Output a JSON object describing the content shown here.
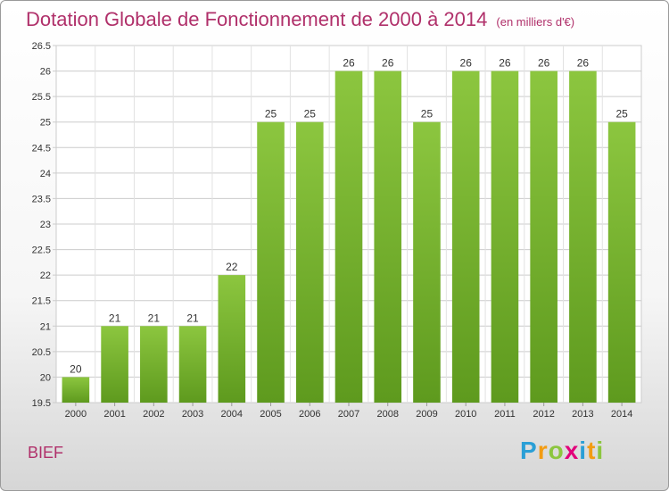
{
  "header": {
    "title": "Dotation Globale de Fonctionnement de 2000 à 2014",
    "subtitle": "(en milliers d'€)"
  },
  "commune": "BIEF",
  "logo": {
    "text": "Proxiti",
    "letters": [
      {
        "ch": "P",
        "color": "#2a9fd6"
      },
      {
        "ch": "r",
        "color": "#f39c12"
      },
      {
        "ch": "o",
        "color": "#8cc63f"
      },
      {
        "ch": "x",
        "color": "#e2007a"
      },
      {
        "ch": "i",
        "color": "#2a9fd6"
      },
      {
        "ch": "t",
        "color": "#f39c12"
      },
      {
        "ch": "i",
        "color": "#8cc63f"
      }
    ]
  },
  "chart_data": {
    "type": "bar",
    "categories": [
      "2000",
      "2001",
      "2002",
      "2003",
      "2004",
      "2005",
      "2006",
      "2007",
      "2008",
      "2009",
      "2010",
      "2011",
      "2012",
      "2013",
      "2014"
    ],
    "values": [
      20,
      21,
      21,
      21,
      22,
      25,
      25,
      26,
      26,
      25,
      26,
      26,
      26,
      26,
      25
    ],
    "value_labels": [
      "20",
      "21",
      "21",
      "21",
      "22",
      "25",
      "25",
      "26",
      "26",
      "25",
      "26",
      "26",
      "26",
      "26",
      "25"
    ],
    "ylim": [
      19.5,
      26.5
    ],
    "yticks": [
      19.5,
      20,
      20.5,
      21,
      21.5,
      22,
      22.5,
      23,
      23.5,
      24,
      24.5,
      25,
      25.5,
      26,
      26.5
    ],
    "ytick_labels": [
      "19.5",
      "20",
      "20.5",
      "21",
      "21.5",
      "22",
      "22.5",
      "23",
      "23.5",
      "24",
      "24.5",
      "25",
      "25.5",
      "26",
      "26.5"
    ],
    "grid": true,
    "bar_color": "#8cc63f",
    "bar_color_dark": "#5e9a1e",
    "text_color": "#b0306a"
  }
}
